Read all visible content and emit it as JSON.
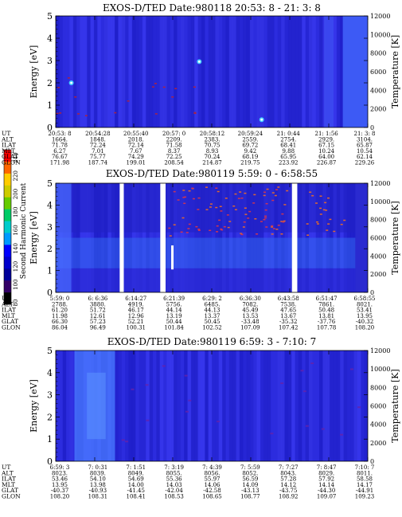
{
  "colorbar": {
    "label": "Second Harmonic Current",
    "ticks": [
      "240",
      "220",
      "200",
      "180",
      "160",
      "140",
      "120",
      "100",
      "80"
    ],
    "colors": [
      "#ff0000",
      "#ff6600",
      "#ffcc00",
      "#cccc00",
      "#66cc00",
      "#00cc66",
      "#00cccc",
      "#0099ff",
      "#0000ff",
      "#0000cc",
      "#000099",
      "#330066",
      "#000000"
    ]
  },
  "panels": [
    {
      "title": "EXOS-D/TED  Date:980118  20:53: 8 - 21: 3: 8",
      "ylabel": "Energy [eV]",
      "y2label": "Temperature [K]",
      "yticks": [
        "0",
        "1",
        "2",
        "3",
        "4",
        "5"
      ],
      "y2ticks": [
        "0",
        "2000",
        "4000",
        "6000",
        "8000",
        "10000",
        "12000"
      ],
      "rows": [
        {
          "name": "UT",
          "values": [
            "20:53: 8",
            "20:54:28",
            "20:55:40",
            "20:57: 0",
            "20:58:12",
            "20:59:24",
            "21: 0:44",
            "21: 1:56",
            "21: 3: 8"
          ]
        },
        {
          "name": "ALT",
          "values": [
            "1664.",
            "1848.",
            "2018.",
            "2209.",
            "2383.",
            "2559.",
            "2754.",
            "2929.",
            "3104."
          ]
        },
        {
          "name": "ILAT",
          "values": [
            "71.78",
            "72.24",
            "72.14",
            "71.58",
            "70.75",
            "69.72",
            "68.41",
            "67.15",
            "65.87"
          ]
        },
        {
          "name": "MLT",
          "values": [
            "6.27",
            "7.01",
            "7.67",
            "8.37",
            "8.93",
            "9.42",
            "9.88",
            "10.24",
            "10.54"
          ]
        },
        {
          "name": "GLAT",
          "values": [
            "76.67",
            "75.77",
            "74.29",
            "72.25",
            "70.24",
            "68.19",
            "65.95",
            "64.00",
            "62.14"
          ]
        },
        {
          "name": "GLON",
          "values": [
            "171.98",
            "187.74",
            "199.01",
            "208.54",
            "214.87",
            "219.75",
            "223.92",
            "226.87",
            "229.26"
          ]
        }
      ]
    },
    {
      "title": "EXOS-D/TED  Date:980119  5:59: 0 - 6:58:55",
      "ylabel": "Energy [eV]",
      "y2label": "Temperature [K]",
      "yticks": [
        "0",
        "1",
        "2",
        "3",
        "4",
        "5"
      ],
      "y2ticks": [
        "0",
        "2000",
        "4000",
        "6000",
        "8000",
        "10000",
        "12000"
      ],
      "rows": [
        {
          "name": "UT",
          "values": [
            "5:59: 0",
            "6: 6:36",
            "6:14:27",
            "6:21:39",
            "6:29: 2",
            "6:36:30",
            "6:43:58",
            "6:51:47",
            "6:58:55"
          ]
        },
        {
          "name": "ALT",
          "values": [
            "2788.",
            "3880.",
            "4919.",
            "5756.",
            "6485.",
            "7082.",
            "7538.",
            "7861.",
            "8021."
          ]
        },
        {
          "name": "ILAT",
          "values": [
            "61.20",
            "51.72",
            "46.17",
            "44.14",
            "44.13",
            "45.49",
            "47.65",
            "50.48",
            "53.41"
          ]
        },
        {
          "name": "MLT",
          "values": [
            "11.98",
            "12.61",
            "12.96",
            "13.19",
            "13.37",
            "13.53",
            "13.67",
            "13.81",
            "13.95"
          ]
        },
        {
          "name": "GLAT",
          "values": [
            "66.30",
            "57.23",
            "52.21",
            "50.44",
            "50.45",
            "-33.48",
            "-35.32",
            "-37.76",
            "-40.32"
          ]
        },
        {
          "name": "GLON",
          "values": [
            "86.04",
            "96.49",
            "100.31",
            "101.84",
            "102.52",
            "107.09",
            "107.42",
            "107.78",
            "108.20"
          ]
        }
      ]
    },
    {
      "title": "EXOS-D/TED  Date:980119  6:59: 3 - 7:10: 7",
      "ylabel": "Energy [eV]",
      "y2label": "Temperature [K]",
      "yticks": [
        "0",
        "1",
        "2",
        "3",
        "4",
        "5"
      ],
      "y2ticks": [
        "0",
        "2000",
        "4000",
        "6000",
        "8000",
        "10000",
        "12000"
      ],
      "rows": [
        {
          "name": "UT",
          "values": [
            "6:59: 3",
            "7: 0:31",
            "7: 1:51",
            "7: 3:19",
            "7: 4:39",
            "7: 5:59",
            "7: 7:27",
            "7: 8:47",
            "7:10: 7"
          ]
        },
        {
          "name": "ALT",
          "values": [
            "8023.",
            "8039.",
            "8049.",
            "8055.",
            "8056.",
            "8052.",
            "8043.",
            "8029.",
            "8011."
          ]
        },
        {
          "name": "ILAT",
          "values": [
            "53.46",
            "54.10",
            "54.69",
            "55.36",
            "55.97",
            "56.59",
            "57.28",
            "57.92",
            "58.58"
          ]
        },
        {
          "name": "MLT",
          "values": [
            "13.95",
            "13.98",
            "14.00",
            "14.03",
            "14.06",
            "14.09",
            "14.12",
            "14.14",
            "14.17"
          ]
        },
        {
          "name": "GLAT",
          "values": [
            "-40.37",
            "-40.93",
            "-41.45",
            "-42.04",
            "-42.58",
            "-43.13",
            "-43.75",
            "-44.30",
            "-44.91"
          ]
        },
        {
          "name": "GLON",
          "values": [
            "108.20",
            "108.31",
            "108.41",
            "108.53",
            "108.65",
            "108.77",
            "108.92",
            "109.07",
            "109.23"
          ]
        }
      ]
    }
  ],
  "chart_data": [
    {
      "type": "heatmap",
      "title": "EXOS-D/TED  Date:980118  20:53: 8 - 21: 3: 8",
      "ylabel": "Energy [eV]",
      "y2label": "Temperature [K]",
      "ylim": [
        0,
        5
      ],
      "y2lim": [
        0,
        12000
      ],
      "x": [
        "20:53: 8",
        "20:54:28",
        "20:55:40",
        "20:57: 0",
        "20:58:12",
        "20:59:24",
        "21: 0:44",
        "21: 1:56",
        "21: 3: 8"
      ]
    },
    {
      "type": "heatmap",
      "title": "EXOS-D/TED  Date:980119  5:59: 0 - 6:58:55",
      "ylabel": "Energy [eV]",
      "y2label": "Temperature [K]",
      "ylim": [
        0,
        5
      ],
      "y2lim": [
        0,
        12000
      ],
      "x": [
        "5:59: 0",
        "6: 6:36",
        "6:14:27",
        "6:21:39",
        "6:29: 2",
        "6:36:30",
        "6:43:58",
        "6:51:47",
        "6:58:55"
      ]
    },
    {
      "type": "heatmap",
      "title": "EXOS-D/TED  Date:980119  6:59: 3 - 7:10: 7",
      "ylabel": "Energy [eV]",
      "y2label": "Temperature [K]",
      "ylim": [
        0,
        5
      ],
      "y2lim": [
        0,
        12000
      ],
      "x": [
        "6:59: 3",
        "7: 0:31",
        "7: 1:51",
        "7: 3:19",
        "7: 4:39",
        "7: 5:59",
        "7: 7:27",
        "7: 8:47",
        "7:10: 7"
      ]
    }
  ]
}
